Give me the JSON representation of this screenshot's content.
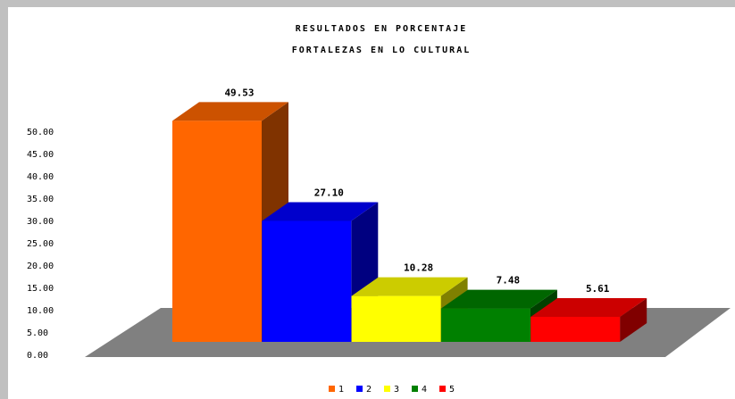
{
  "chart_data": {
    "type": "bar3d",
    "title": [
      "RESULTADOS EN PORCENTAJE",
      "FORTALEZAS EN LO CULTURAL"
    ],
    "categories": [
      "1",
      "2",
      "3",
      "4",
      "5"
    ],
    "values": [
      49.53,
      27.1,
      10.28,
      7.48,
      5.61
    ],
    "value_labels": [
      "49.53",
      "27.10",
      "10.28",
      "7.48",
      "5.61"
    ],
    "colors": [
      "#ff6600",
      "#0000ff",
      "#ffff00",
      "#008000",
      "#ff0000"
    ],
    "ylim": [
      0,
      50
    ],
    "yticks": [
      {
        "value": 0,
        "label": "0.00"
      },
      {
        "value": 5,
        "label": "5.00"
      },
      {
        "value": 10,
        "label": "10.00"
      },
      {
        "value": 15,
        "label": "15.00"
      },
      {
        "value": 20,
        "label": "20.00"
      },
      {
        "value": 25,
        "label": "25.00"
      },
      {
        "value": 30,
        "label": "30.00"
      },
      {
        "value": 35,
        "label": "35.00"
      },
      {
        "value": 40,
        "label": "40.00"
      },
      {
        "value": 45,
        "label": "45.00"
      },
      {
        "value": 50,
        "label": "50.00"
      }
    ],
    "legend": "bottom"
  }
}
